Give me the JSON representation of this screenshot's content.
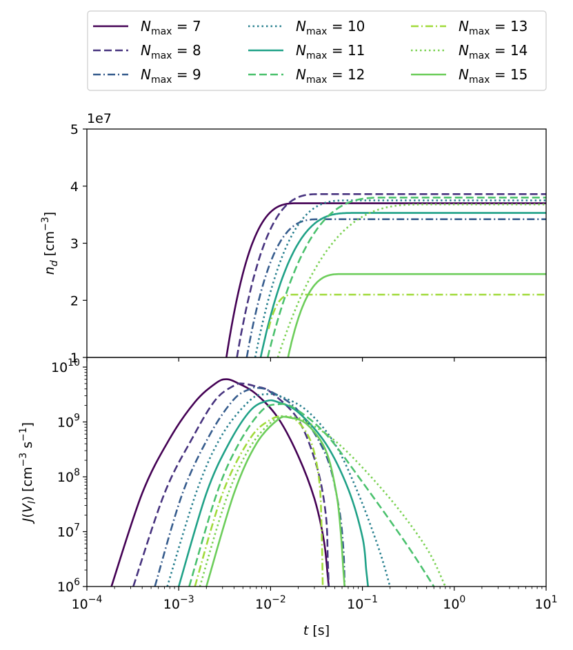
{
  "legend": {
    "placement": "top-center",
    "columns": 3,
    "entries": [
      {
        "base": "N",
        "sub": "max",
        "rest": " = 7",
        "color": "#440154",
        "dash": "solid"
      },
      {
        "base": "N",
        "sub": "max",
        "rest": " = 8",
        "color": "#46327e",
        "dash": "dashed"
      },
      {
        "base": "N",
        "sub": "max",
        "rest": " = 9",
        "color": "#365c8d",
        "dash": "dashdot"
      },
      {
        "base": "N",
        "sub": "max",
        "rest": " = 10",
        "color": "#277f8e",
        "dash": "dotted"
      },
      {
        "base": "N",
        "sub": "max",
        "rest": " = 11",
        "color": "#1fa187",
        "dash": "solid"
      },
      {
        "base": "N",
        "sub": "max",
        "rest": " = 12",
        "color": "#4ac16d",
        "dash": "dashed"
      },
      {
        "base": "N",
        "sub": "max",
        "rest": " = 13",
        "color": "#a0da39",
        "dash": "dashdot"
      },
      {
        "base": "N",
        "sub": "max",
        "rest": " = 14",
        "color": "#7ad151",
        "dash": "dotted"
      },
      {
        "base": "N",
        "sub": "max",
        "rest": " = 15",
        "color": "#6ccd5a",
        "dash": "solid"
      }
    ]
  },
  "chart_data": [
    {
      "type": "line",
      "panel": "top",
      "xscale": "log",
      "xlim": [
        0.0001,
        10
      ],
      "yscale": "linear",
      "ylim": [
        10000000,
        50000000
      ],
      "offset_text": "1e7",
      "yticks": [
        10000000,
        20000000,
        30000000,
        40000000,
        50000000
      ],
      "ytick_labels": [
        "1",
        "2",
        "3",
        "4",
        "5"
      ],
      "ylabel": {
        "base": "n",
        "sub": "d",
        "unit": " [cm",
        "sup": "−3",
        "close": "]"
      },
      "grid": false,
      "series": [
        {
          "legend_index": 0,
          "ts": 0.0033,
          "tp": 0.02,
          "ys": 10000000,
          "yp": 37000000
        },
        {
          "legend_index": 1,
          "ts": 0.0043,
          "tp": 0.035,
          "ys": 10000000,
          "yp": 38600000
        },
        {
          "legend_index": 2,
          "ts": 0.0055,
          "tp": 0.035,
          "ys": 10000000,
          "yp": 34200000
        },
        {
          "legend_index": 3,
          "ts": 0.0068,
          "tp": 0.07,
          "ys": 10000000,
          "yp": 37500000
        },
        {
          "legend_index": 4,
          "ts": 0.0078,
          "tp": 0.08,
          "ys": 10000000,
          "yp": 35300000
        },
        {
          "legend_index": 5,
          "ts": 0.0093,
          "tp": 0.18,
          "ys": 10000000,
          "yp": 38000000
        },
        {
          "legend_index": 6,
          "ts": 0.0095,
          "tp": 0.018,
          "ys": 15000000,
          "yp": 21000000
        },
        {
          "legend_index": 7,
          "ts": 0.012,
          "tp": 0.5,
          "ys": 10000000,
          "yp": 36800000
        },
        {
          "legend_index": 8,
          "ts": 0.0155,
          "tp": 0.06,
          "ys": 10000000,
          "yp": 24600000
        }
      ]
    },
    {
      "type": "line",
      "panel": "bottom",
      "xscale": "log",
      "xlim": [
        0.0001,
        10
      ],
      "xlabel": {
        "base": "t",
        "unit": " [s]"
      },
      "xticks": [
        0.0001,
        0.001,
        0.01,
        0.1,
        1,
        10
      ],
      "xtick_labels": [
        {
          "base": "10",
          "sup": "−4"
        },
        {
          "base": "10",
          "sup": "−3"
        },
        {
          "base": "10",
          "sup": "−2"
        },
        {
          "base": "10",
          "sup": "−1"
        },
        {
          "base": "10",
          "sup": "0"
        },
        {
          "base": "10",
          "sup": "1"
        }
      ],
      "yscale": "log",
      "ylim": [
        1000000,
        15000000000
      ],
      "yticks": [
        1000000,
        10000000,
        100000000,
        1000000000,
        10000000000
      ],
      "ytick_labels": [
        {
          "base": "10",
          "sup": "6"
        },
        {
          "base": "10",
          "sup": "7"
        },
        {
          "base": "10",
          "sup": "8"
        },
        {
          "base": "10",
          "sup": "9"
        },
        {
          "base": "10",
          "sup": "10"
        }
      ],
      "ylabel": {
        "base": "J",
        "arg": "(V",
        "sub": "l",
        "close": ")",
        "unit": " [cm",
        "sup1": "−3",
        "mid": " s",
        "sup2": "−1",
        "end": "]"
      },
      "grid": false,
      "series": [
        {
          "legend_index": 0,
          "points": [
            [
              0.000185,
              1000000.0
            ],
            [
              0.0004,
              50000000.0
            ],
            [
              0.0008,
              500000000.0
            ],
            [
              0.0015,
              2300000000.0
            ],
            [
              0.0025,
              5000000000.0
            ],
            [
              0.0033,
              6000000000.0
            ],
            [
              0.0045,
              5000000000.0
            ],
            [
              0.007,
              3200000000.0
            ],
            [
              0.012,
              1200000000.0
            ],
            [
              0.02,
              240000000.0
            ],
            [
              0.03,
              40000000.0
            ],
            [
              0.038,
              7000000.0
            ],
            [
              0.042,
              1500000.0
            ],
            [
              0.043,
              1000000.0
            ]
          ]
        },
        {
          "legend_index": 1,
          "points": [
            [
              0.00032,
              1000000.0
            ],
            [
              0.0007,
              50000000.0
            ],
            [
              0.0014,
              500000000.0
            ],
            [
              0.0025,
              2500000000.0
            ],
            [
              0.004,
              4600000000.0
            ],
            [
              0.005,
              5000000000.0
            ],
            [
              0.007,
              4400000000.0
            ],
            [
              0.01,
              3500000000.0
            ],
            [
              0.02,
              1100000000.0
            ],
            [
              0.032,
              150000000.0
            ],
            [
              0.04,
              20000000.0
            ],
            [
              0.042,
              3000000.0
            ],
            [
              0.043,
              1000000.0
            ]
          ]
        },
        {
          "legend_index": 2,
          "points": [
            [
              0.00055,
              1000000.0
            ],
            [
              0.0011,
              50000000.0
            ],
            [
              0.0022,
              600000000.0
            ],
            [
              0.004,
              2600000000.0
            ],
            [
              0.006,
              4000000000.0
            ],
            [
              0.007,
              4200000000.0
            ],
            [
              0.01,
              3600000000.0
            ],
            [
              0.02,
              1600000000.0
            ],
            [
              0.04,
              250000000.0
            ],
            [
              0.055,
              30000000.0
            ],
            [
              0.062,
              5000000.0
            ],
            [
              0.064,
              1000000.0
            ]
          ]
        },
        {
          "legend_index": 3,
          "points": [
            [
              0.00075,
              1000000.0
            ],
            [
              0.0016,
              60000000.0
            ],
            [
              0.003,
              600000000.0
            ],
            [
              0.006,
              2500000000.0
            ],
            [
              0.009,
              3200000000.0
            ],
            [
              0.013,
              2900000000.0
            ],
            [
              0.025,
              1600000000.0
            ],
            [
              0.05,
              400000000.0
            ],
            [
              0.09,
              50000000.0
            ],
            [
              0.15,
              5000000.0
            ],
            [
              0.2,
              1000000.0
            ]
          ]
        },
        {
          "legend_index": 4,
          "points": [
            [
              0.001,
              1000000.0
            ],
            [
              0.002,
              50000000.0
            ],
            [
              0.0035,
              400000000.0
            ],
            [
              0.006,
              1600000000.0
            ],
            [
              0.009,
              2400000000.0
            ],
            [
              0.012,
              2300000000.0
            ],
            [
              0.02,
              1500000000.0
            ],
            [
              0.04,
              400000000.0
            ],
            [
              0.07,
              60000000.0
            ],
            [
              0.1,
              8000000.0
            ],
            [
              0.11,
              2000000.0
            ],
            [
              0.115,
              1000000.0
            ]
          ]
        },
        {
          "legend_index": 5,
          "points": [
            [
              0.0013,
              1000000.0
            ],
            [
              0.0026,
              50000000.0
            ],
            [
              0.0045,
              400000000.0
            ],
            [
              0.008,
              1600000000.0
            ],
            [
              0.012,
              2100000000.0
            ],
            [
              0.018,
              1800000000.0
            ],
            [
              0.04,
              600000000.0
            ],
            [
              0.1,
              80000000.0
            ],
            [
              0.3,
              6000000.0
            ],
            [
              0.6,
              1000000.0
            ]
          ]
        },
        {
          "legend_index": 6,
          "points": [
            [
              0.0015,
              1000000.0
            ],
            [
              0.003,
              50000000.0
            ],
            [
              0.006,
              500000000.0
            ],
            [
              0.01,
              1100000000.0
            ],
            [
              0.014,
              1250000000.0
            ],
            [
              0.02,
              1000000000.0
            ],
            [
              0.028,
              400000000.0
            ],
            [
              0.034,
              80000000.0
            ],
            [
              0.036,
              10000000.0
            ],
            [
              0.037,
              1000000.0
            ]
          ]
        },
        {
          "legend_index": 7,
          "points": [
            [
              0.0017,
              1000000.0
            ],
            [
              0.0033,
              40000000.0
            ],
            [
              0.006,
              350000000.0
            ],
            [
              0.011,
              1100000000.0
            ],
            [
              0.016,
              1250000000.0
            ],
            [
              0.025,
              1000000000.0
            ],
            [
              0.06,
              350000000.0
            ],
            [
              0.2,
              40000000.0
            ],
            [
              0.5,
              5000000.0
            ],
            [
              0.8,
              1000000.0
            ]
          ]
        },
        {
          "legend_index": 8,
          "points": [
            [
              0.002,
              1000000.0
            ],
            [
              0.004,
              50000000.0
            ],
            [
              0.007,
              400000000.0
            ],
            [
              0.012,
              1100000000.0
            ],
            [
              0.016,
              1200000000.0
            ],
            [
              0.025,
              900000000.0
            ],
            [
              0.04,
              300000000.0
            ],
            [
              0.052,
              50000000.0
            ],
            [
              0.058,
              10000000.0
            ],
            [
              0.062,
              2000000.0
            ],
            [
              0.064,
              1000000.0
            ]
          ]
        }
      ]
    }
  ]
}
